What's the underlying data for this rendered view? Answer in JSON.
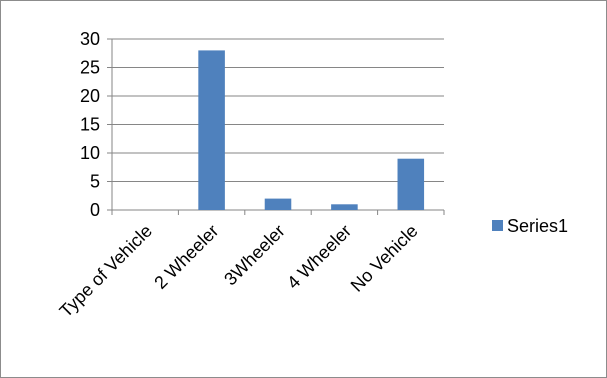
{
  "chart_data": {
    "type": "bar",
    "categories": [
      "Type of Vehicle",
      "2 Wheeler",
      "3Wheeler",
      "4 Wheeler",
      "No Vehicle"
    ],
    "series": [
      {
        "name": "Series1",
        "values": [
          0,
          28,
          2,
          1,
          9
        ],
        "color": "#4f81bd"
      }
    ],
    "yticks": [
      "0",
      "5",
      "10",
      "15",
      "20",
      "25",
      "30"
    ],
    "ylim": [
      0,
      30
    ],
    "grid": true,
    "legend": "right",
    "title": "",
    "xlabel": "",
    "ylabel": ""
  }
}
